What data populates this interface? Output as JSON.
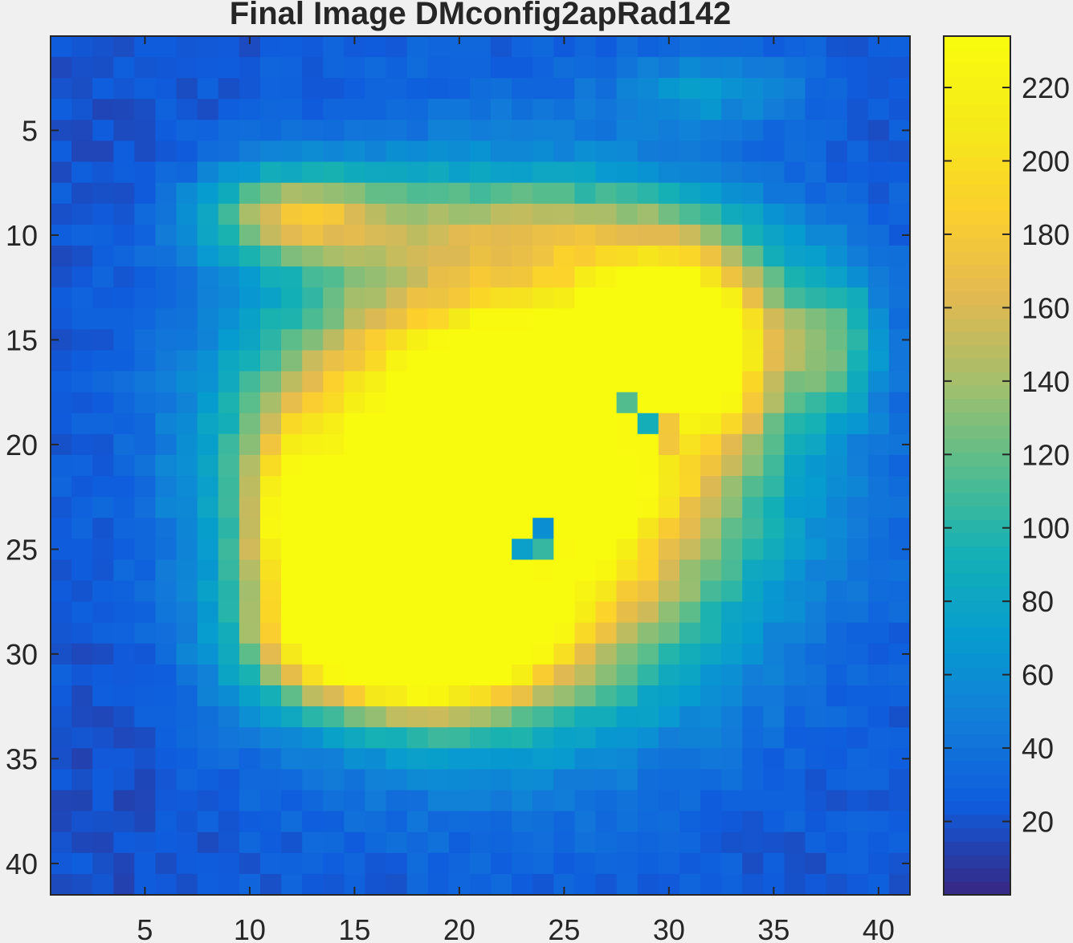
{
  "chart_data": {
    "type": "heatmap",
    "title": "Final Image DMconfig2apRad142",
    "xlabel": "",
    "ylabel": "",
    "xlim": [
      0.5,
      41.5
    ],
    "ylim": [
      0.5,
      41.5
    ],
    "y_reversed": true,
    "grid": false,
    "colormap": "parula",
    "clim": [
      0,
      234
    ],
    "x_ticks": [
      5,
      10,
      15,
      20,
      25,
      30,
      35,
      40
    ],
    "y_ticks": [
      5,
      10,
      15,
      20,
      25,
      30,
      35,
      40
    ],
    "colorbar": {
      "position": "right",
      "ticks": [
        20,
        40,
        60,
        80,
        100,
        120,
        140,
        160,
        180,
        200,
        220
      ]
    },
    "rows": 41,
    "cols": 41,
    "values": [
      "Row-major 41x41 matrix, row 1 at top. Cell values in colormap units (approximate).",
      "Blobs: main yellow region centred near (x=22,y=21) ~232; upper-right yellow lobe near (x=30,y=15) ~232; lower-left yellow lobe near (x=17,y=29.5) ~232; halo ring ~120-180; holes near (x=29,y=19) ~95 and (x=24,y=25) ~80; upper-left cyan patch near (x=12,y=9) ~130; right cyan patch near (x=38,y=15) ~95; background ~10-40."
    ],
    "colors": {
      "low": "#352a87",
      "mid": "#0fbbc0",
      "high": "#f9fb0e"
    }
  }
}
